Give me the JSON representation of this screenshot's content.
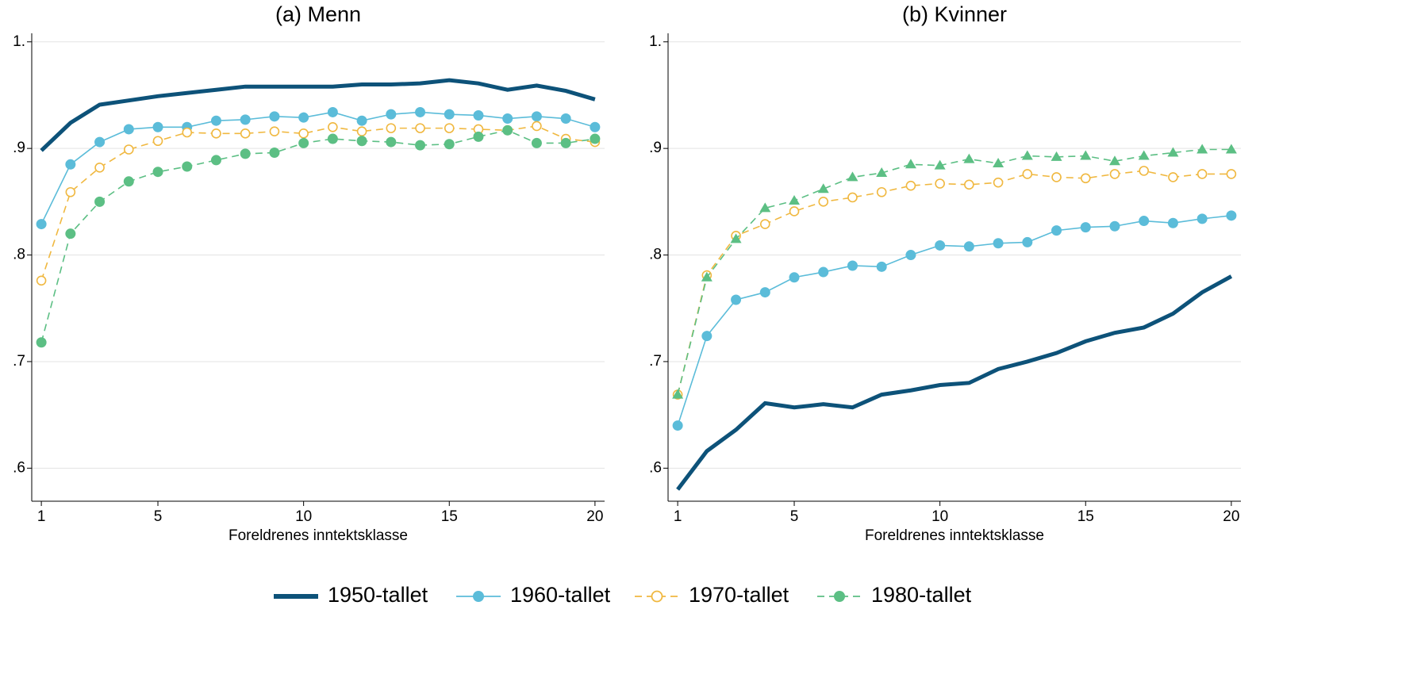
{
  "chart_data": [
    {
      "type": "line",
      "title": "(a) Menn",
      "x_label": "Foreldrenes inntektsklasse",
      "x": [
        1,
        2,
        3,
        4,
        5,
        6,
        7,
        8,
        9,
        10,
        11,
        12,
        13,
        14,
        15,
        16,
        17,
        18,
        19,
        20
      ],
      "xlim": [
        0.67,
        20.33
      ],
      "xticks": [
        1,
        5,
        10,
        15,
        20
      ],
      "ylim": [
        0.569,
        1.008
      ],
      "yticks": [
        {
          "value": 0.6,
          "label": ".6"
        },
        {
          "value": 0.7,
          "label": ".7"
        },
        {
          "value": 0.8,
          "label": ".8"
        },
        {
          "value": 0.9,
          "label": ".9"
        },
        {
          "value": 1,
          "label": "1."
        }
      ],
      "grid": true,
      "series": [
        {
          "name": "1950-tallet",
          "color": "#0d5279",
          "line_style": "solid",
          "marker": "none",
          "values": [
            0.898,
            0.924,
            0.941,
            0.945,
            0.949,
            0.952,
            0.955,
            0.958,
            0.958,
            0.958,
            0.958,
            0.96,
            0.96,
            0.961,
            0.964,
            0.961,
            0.955,
            0.959,
            0.954,
            0.946
          ]
        },
        {
          "name": "1960-tallet",
          "color": "#5bbcd9",
          "line_style": "solid",
          "marker": "circle",
          "values": [
            0.829,
            0.885,
            0.906,
            0.918,
            0.92,
            0.92,
            0.926,
            0.927,
            0.93,
            0.929,
            0.934,
            0.926,
            0.932,
            0.934,
            0.932,
            0.931,
            0.928,
            0.93,
            0.928,
            0.92
          ]
        },
        {
          "name": "1970-tallet",
          "color": "#f0b840",
          "line_style": "dashed",
          "marker": "hollow-circle",
          "values": [
            0.776,
            0.859,
            0.882,
            0.899,
            0.907,
            0.915,
            0.914,
            0.914,
            0.916,
            0.914,
            0.92,
            0.916,
            0.919,
            0.919,
            0.919,
            0.918,
            0.917,
            0.921,
            0.909,
            0.906
          ]
        },
        {
          "name": "1980-tallet",
          "color": "#5cbf84",
          "line_style": "dashed",
          "marker": "circle",
          "values": [
            0.718,
            0.82,
            0.85,
            0.869,
            0.878,
            0.883,
            0.889,
            0.895,
            0.896,
            0.905,
            0.909,
            0.907,
            0.906,
            0.903,
            0.904,
            0.911,
            0.917,
            0.905,
            0.905,
            0.909
          ]
        }
      ]
    },
    {
      "type": "line",
      "title": "(b) Kvinner",
      "x_label": "Foreldrenes inntektsklasse",
      "x": [
        1,
        2,
        3,
        4,
        5,
        6,
        7,
        8,
        9,
        10,
        11,
        12,
        13,
        14,
        15,
        16,
        17,
        18,
        19,
        20
      ],
      "xlim": [
        0.67,
        20.33
      ],
      "xticks": [
        1,
        5,
        10,
        15,
        20
      ],
      "ylim": [
        0.569,
        1.008
      ],
      "yticks": [
        {
          "value": 0.6,
          "label": ".6"
        },
        {
          "value": 0.7,
          "label": ".7"
        },
        {
          "value": 0.8,
          "label": ".8"
        },
        {
          "value": 0.9,
          "label": ".9"
        },
        {
          "value": 1,
          "label": "1."
        }
      ],
      "grid": true,
      "series": [
        {
          "name": "1950-tallet",
          "color": "#0d5279",
          "line_style": "solid",
          "marker": "none",
          "values": [
            0.58,
            0.616,
            0.636,
            0.661,
            0.657,
            0.66,
            0.657,
            0.669,
            0.673,
            0.678,
            0.68,
            0.693,
            0.7,
            0.708,
            0.719,
            0.727,
            0.732,
            0.745,
            0.765,
            0.78
          ]
        },
        {
          "name": "1960-tallet",
          "color": "#5bbcd9",
          "line_style": "solid",
          "marker": "circle",
          "values": [
            0.64,
            0.724,
            0.758,
            0.765,
            0.779,
            0.784,
            0.79,
            0.789,
            0.8,
            0.809,
            0.808,
            0.811,
            0.812,
            0.823,
            0.826,
            0.827,
            0.832,
            0.83,
            0.834,
            0.837
          ]
        },
        {
          "name": "1970-tallet",
          "color": "#f0b840",
          "line_style": "dashed",
          "marker": "hollow-circle",
          "values": [
            0.669,
            0.781,
            0.818,
            0.829,
            0.841,
            0.85,
            0.854,
            0.859,
            0.865,
            0.867,
            0.866,
            0.868,
            0.876,
            0.873,
            0.872,
            0.876,
            0.879,
            0.873,
            0.876,
            0.876
          ]
        },
        {
          "name": "1980-tallet",
          "color": "#5cbf84",
          "line_style": "dashed",
          "marker": "triangle",
          "values": [
            0.669,
            0.779,
            0.815,
            0.844,
            0.851,
            0.862,
            0.873,
            0.877,
            0.885,
            0.884,
            0.89,
            0.886,
            0.893,
            0.892,
            0.893,
            0.888,
            0.893,
            0.896,
            0.899,
            0.899
          ]
        }
      ]
    }
  ]
}
